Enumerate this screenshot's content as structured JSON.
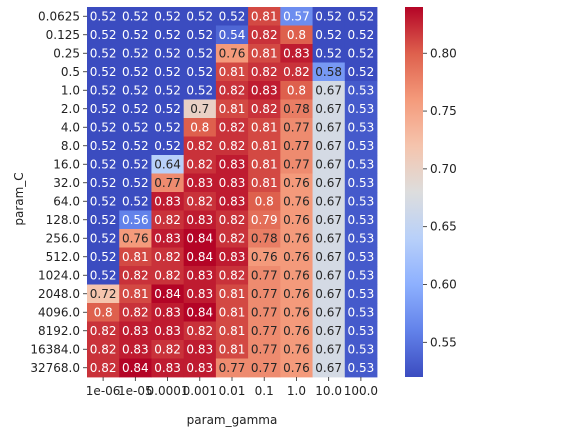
{
  "chart_data": {
    "type": "heatmap",
    "title": "",
    "xlabel": "param_gamma",
    "ylabel": "param_C",
    "x_categories": [
      "1e-06",
      "1e-05",
      "0.0001",
      "0.001",
      "0.01",
      "0.1",
      "1.0",
      "10.0",
      "100.0"
    ],
    "y_categories": [
      "0.0625",
      "0.125",
      "0.25",
      "0.5",
      "1.0",
      "2.0",
      "4.0",
      "8.0",
      "16.0",
      "32.0",
      "64.0",
      "128.0",
      "256.0",
      "512.0",
      "1024.0",
      "2048.0",
      "4096.0",
      "8192.0",
      "16384.0",
      "32768.0"
    ],
    "values": [
      [
        0.52,
        0.52,
        0.52,
        0.52,
        0.52,
        0.81,
        0.57,
        0.52,
        0.52
      ],
      [
        0.52,
        0.52,
        0.52,
        0.52,
        0.54,
        0.82,
        0.8,
        0.52,
        0.52
      ],
      [
        0.52,
        0.52,
        0.52,
        0.52,
        0.76,
        0.81,
        0.83,
        0.52,
        0.52
      ],
      [
        0.52,
        0.52,
        0.52,
        0.52,
        0.81,
        0.82,
        0.82,
        0.58,
        0.52
      ],
      [
        0.52,
        0.52,
        0.52,
        0.52,
        0.82,
        0.83,
        0.8,
        0.67,
        0.53
      ],
      [
        0.52,
        0.52,
        0.52,
        0.7,
        0.81,
        0.82,
        0.78,
        0.67,
        0.53
      ],
      [
        0.52,
        0.52,
        0.52,
        0.8,
        0.82,
        0.81,
        0.77,
        0.67,
        0.53
      ],
      [
        0.52,
        0.52,
        0.52,
        0.82,
        0.82,
        0.81,
        0.77,
        0.67,
        0.53
      ],
      [
        0.52,
        0.52,
        0.64,
        0.82,
        0.83,
        0.81,
        0.77,
        0.67,
        0.53
      ],
      [
        0.52,
        0.52,
        0.77,
        0.83,
        0.83,
        0.81,
        0.76,
        0.67,
        0.53
      ],
      [
        0.52,
        0.52,
        0.83,
        0.82,
        0.83,
        0.8,
        0.76,
        0.67,
        0.53
      ],
      [
        0.52,
        0.56,
        0.82,
        0.83,
        0.82,
        0.79,
        0.76,
        0.67,
        0.53
      ],
      [
        0.52,
        0.76,
        0.83,
        0.84,
        0.82,
        0.78,
        0.76,
        0.67,
        0.53
      ],
      [
        0.52,
        0.81,
        0.82,
        0.84,
        0.83,
        0.76,
        0.76,
        0.67,
        0.53
      ],
      [
        0.52,
        0.82,
        0.82,
        0.83,
        0.82,
        0.77,
        0.76,
        0.67,
        0.53
      ],
      [
        0.72,
        0.81,
        0.84,
        0.83,
        0.81,
        0.77,
        0.76,
        0.67,
        0.53
      ],
      [
        0.8,
        0.82,
        0.83,
        0.84,
        0.81,
        0.77,
        0.76,
        0.67,
        0.53
      ],
      [
        0.82,
        0.83,
        0.83,
        0.82,
        0.81,
        0.77,
        0.76,
        0.67,
        0.53
      ],
      [
        0.82,
        0.83,
        0.82,
        0.83,
        0.81,
        0.77,
        0.76,
        0.67,
        0.53
      ],
      [
        0.82,
        0.84,
        0.83,
        0.83,
        0.77,
        0.77,
        0.76,
        0.67,
        0.53
      ]
    ],
    "value_range": [
      0.52,
      0.84
    ],
    "colormap": "coolwarm",
    "colorbar": {
      "ticks": [
        0.55,
        0.6,
        0.65,
        0.7,
        0.75,
        0.8
      ],
      "tick_labels": [
        "0.55",
        "0.60",
        "0.65",
        "0.70",
        "0.75",
        "0.80"
      ]
    },
    "grid": false,
    "legend": "colorbar-right"
  }
}
